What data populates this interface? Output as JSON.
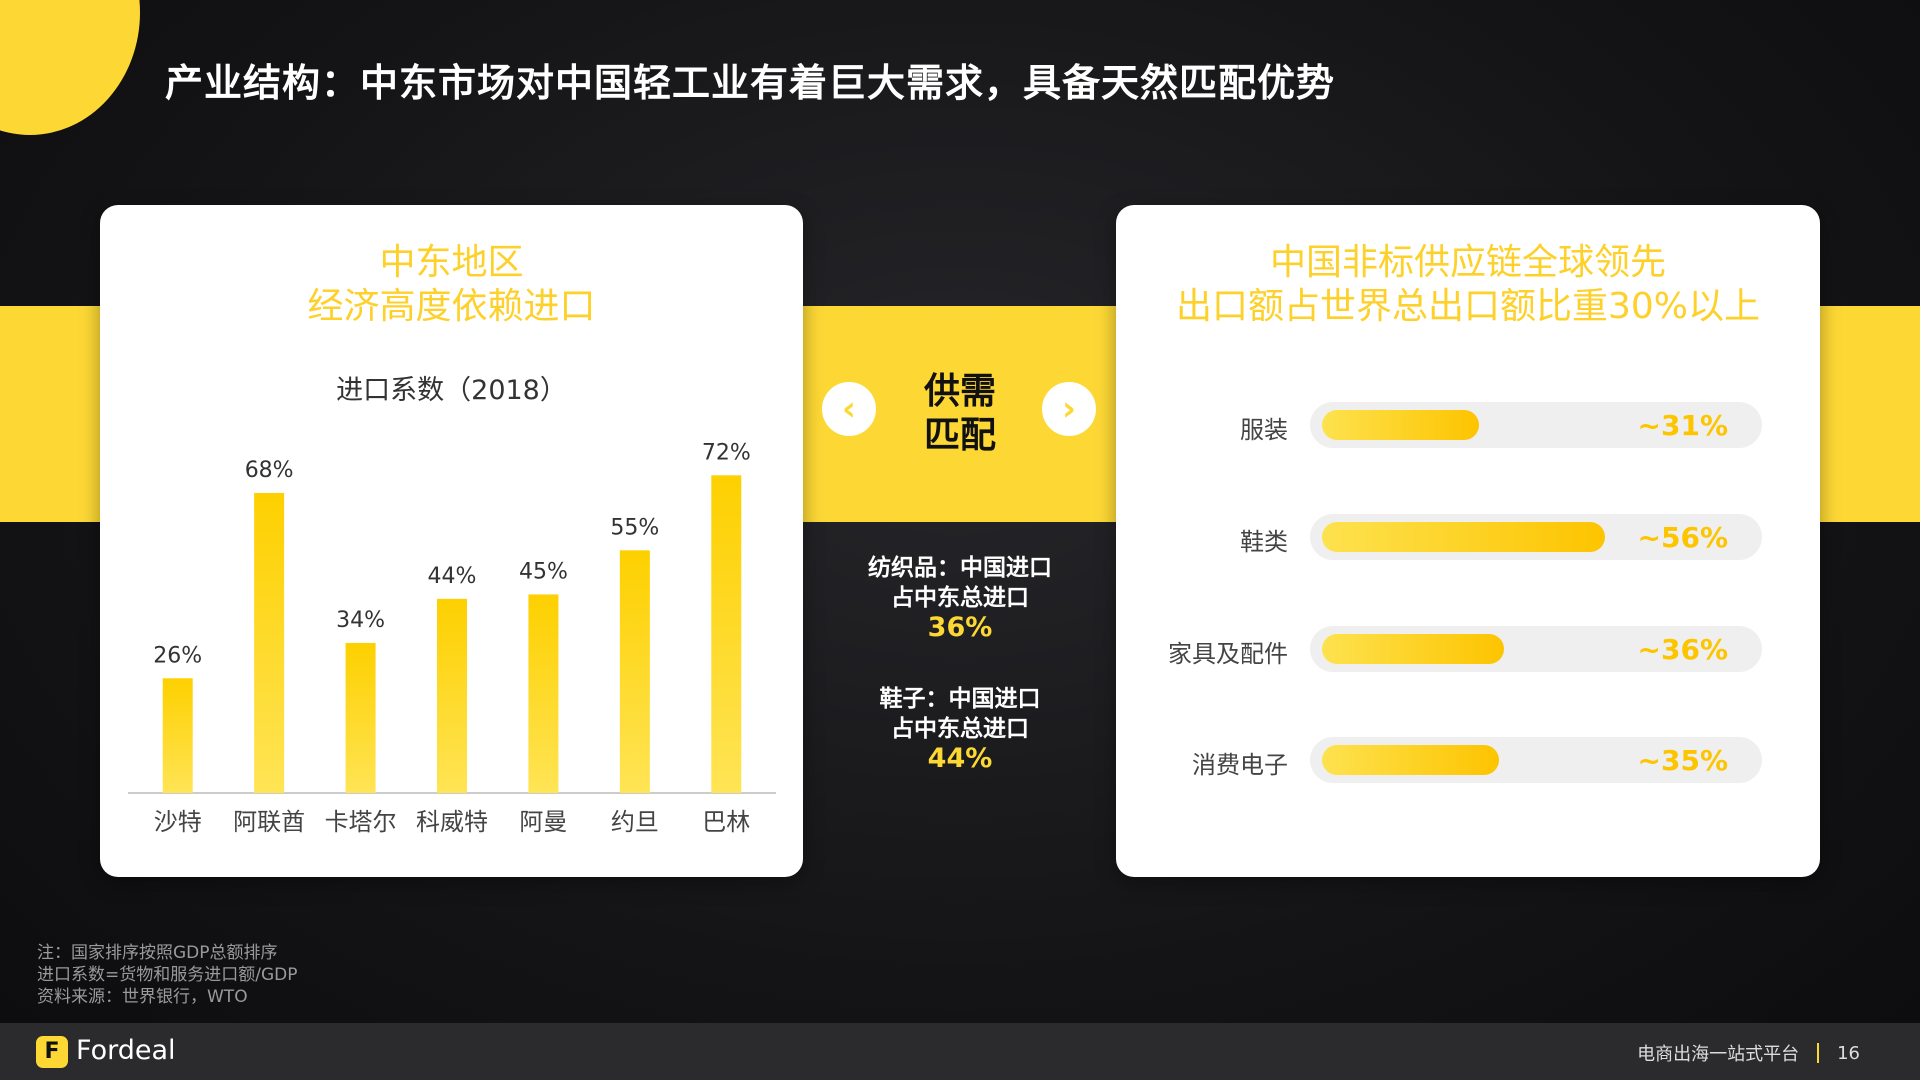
{
  "page": {
    "title": "产业结构：中东市场对中国轻工业有着巨大需求，具备天然匹配优势"
  },
  "left_card": {
    "title_line1": "中东地区",
    "title_line2": "经济高度依赖进口",
    "chart_title": "进口系数（2018）"
  },
  "middle": {
    "match_line1": "供需",
    "match_line2": "匹配",
    "prev_icon": "chevron-left-icon",
    "next_icon": "chevron-right-icon",
    "stat1_line1": "纺织品：中国进口",
    "stat1_line2": "占中东总进口",
    "stat1_value": "36%",
    "stat2_line1": "鞋子：中国进口",
    "stat2_line2": "占中东总进口",
    "stat2_value": "44%"
  },
  "right_card": {
    "title_line1": "中国非标供应链全球领先",
    "title_line2": "出口额占世界总出口额比重30%以上"
  },
  "chart_data": [
    {
      "type": "bar",
      "title": "进口系数（2018）",
      "categories": [
        "沙特",
        "阿联酋",
        "卡塔尔",
        "科威特",
        "阿曼",
        "约旦",
        "巴林"
      ],
      "values": [
        26,
        68,
        34,
        44,
        45,
        55,
        72
      ],
      "value_labels": [
        "26%",
        "68%",
        "34%",
        "44%",
        "45%",
        "55%",
        "72%"
      ],
      "ylim": [
        0,
        80
      ],
      "grid": false,
      "color": "#fdd835"
    },
    {
      "type": "bar",
      "orientation": "horizontal",
      "title": "",
      "categories": [
        "服装",
        "鞋类",
        "家具及配件",
        "消费电子"
      ],
      "values": [
        31,
        56,
        36,
        35
      ],
      "value_labels": [
        "~31%",
        "~56%",
        "~36%",
        "~35%"
      ],
      "xlim": [
        0,
        100
      ],
      "color": "#fdd835"
    }
  ],
  "notes": {
    "line1": "注：国家排序按照GDP总额排序",
    "line2": "进口系数=货物和服务进口额/GDP",
    "line3": "资料来源：世界银行，WTO"
  },
  "footer": {
    "logo_letter": "F",
    "logo_text": "Fordeal",
    "slogan": "电商出海一站式平台",
    "page_number": "16"
  },
  "colors": {
    "accent": "#fdd835",
    "background": "#141416"
  }
}
